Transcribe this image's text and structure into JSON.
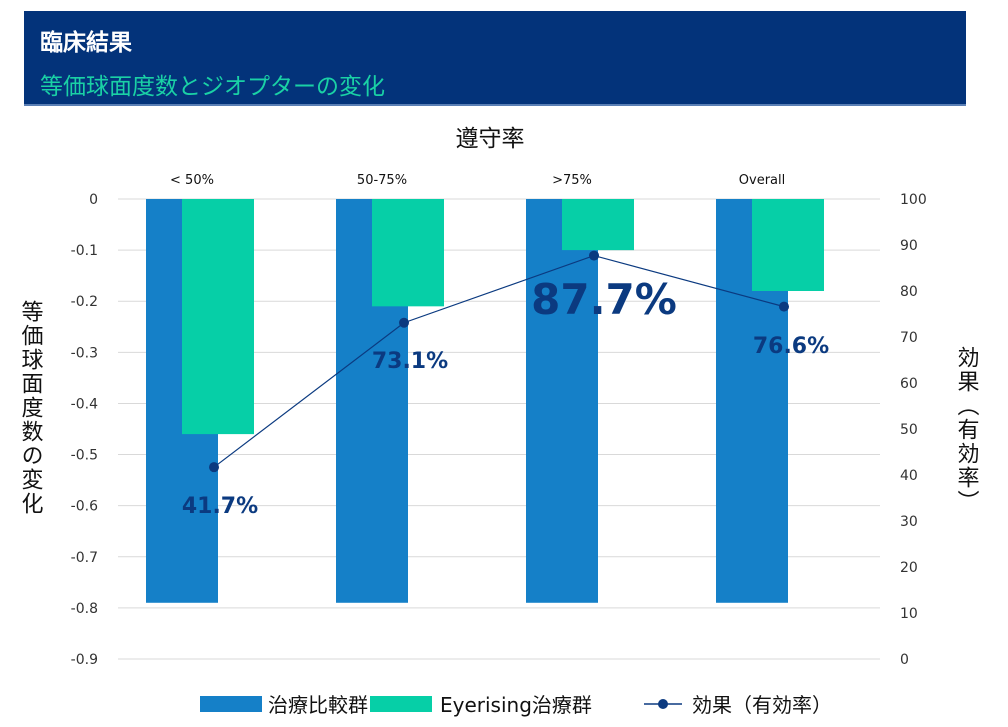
{
  "header": {
    "title": "臨床結果",
    "subtitle": "等価球面度数とジオプターの変化"
  },
  "chart_data": {
    "type": "bar",
    "title": "遵守率",
    "categories": [
      "< 50%",
      "50-75%",
      ">75%",
      "Overall"
    ],
    "ylabel": "等価球面度数の変化",
    "y2label": "効果（有効率）",
    "ylim": [
      -0.9,
      0
    ],
    "y2lim": [
      0,
      100
    ],
    "yticks": [
      "0",
      "-0.1",
      "-0.2",
      "-0.3",
      "-0.4",
      "-0.5",
      "-0.6",
      "-0.7",
      "-0.8",
      "-0.9"
    ],
    "y2ticks": [
      "100",
      "90",
      "80",
      "70",
      "60",
      "50",
      "40",
      "30",
      "20",
      "10",
      "0"
    ],
    "series": [
      {
        "name": "治療比較群",
        "type": "bar",
        "color": "#1580c8",
        "values": [
          -0.79,
          -0.79,
          -0.79,
          -0.79
        ]
      },
      {
        "name": "Eyerising治療群",
        "type": "bar",
        "color": "#06cfa7",
        "values": [
          -0.46,
          -0.21,
          -0.1,
          -0.18
        ]
      },
      {
        "name": "効果（有効率）",
        "type": "line",
        "axis": "right",
        "color": "#0b3a80",
        "values": [
          41.7,
          73.1,
          87.7,
          76.6
        ],
        "labels": [
          "41.7%",
          "73.1%",
          "87.7%",
          "76.6%"
        ]
      }
    ],
    "grid": true,
    "legend": "bottom"
  }
}
